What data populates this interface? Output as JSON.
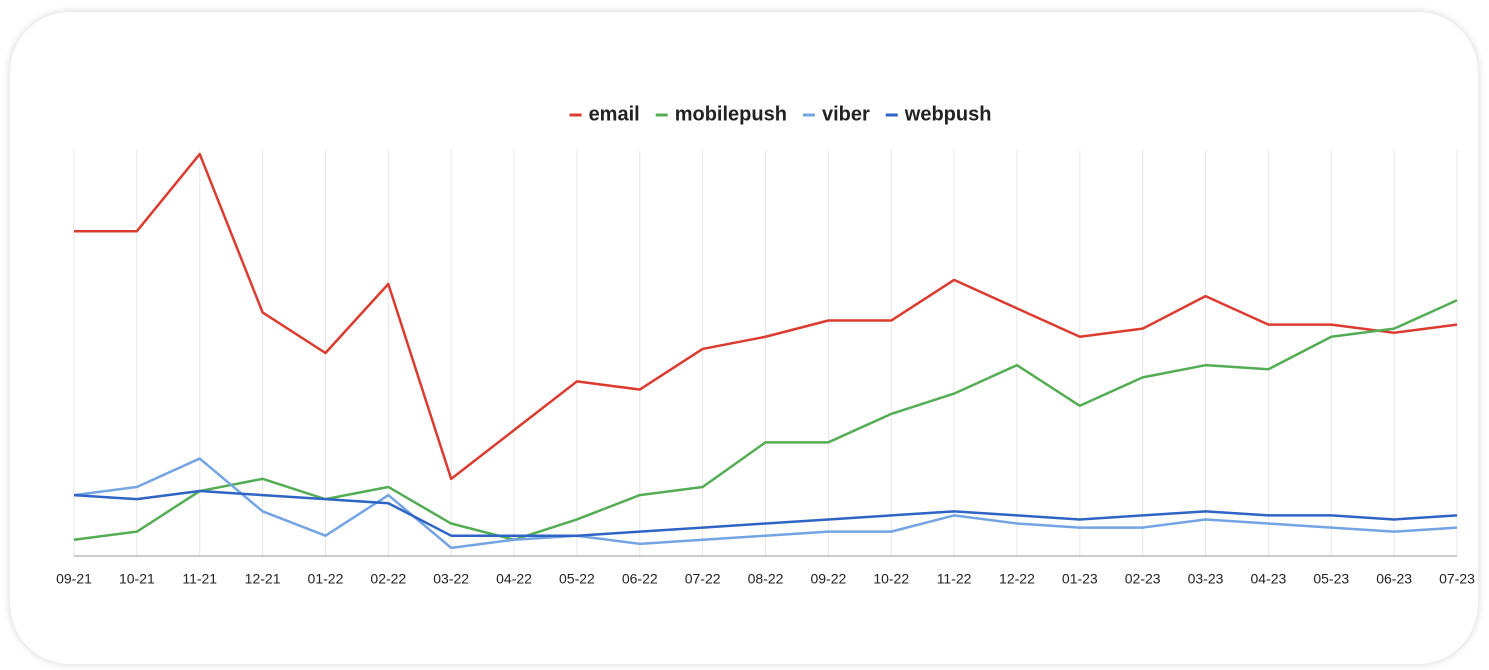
{
  "chart_data": {
    "type": "line",
    "categories": [
      "09-21",
      "10-21",
      "11-21",
      "12-21",
      "01-22",
      "02-22",
      "03-22",
      "04-22",
      "05-22",
      "06-22",
      "07-22",
      "08-22",
      "09-22",
      "10-22",
      "11-22",
      "12-22",
      "01-23",
      "02-23",
      "03-23",
      "04-23",
      "05-23",
      "06-23",
      "07-23"
    ],
    "series": [
      {
        "name": "email",
        "color": "#dc3b2f",
        "values": [
          80,
          80,
          99,
          60,
          50,
          67,
          19,
          31,
          43,
          41,
          51,
          54,
          58,
          58,
          68,
          61,
          54,
          56,
          64,
          57,
          57,
          55,
          57
        ]
      },
      {
        "name": "mobilepush",
        "color": "#54ad54",
        "values": [
          4,
          6,
          16,
          19,
          14,
          17,
          8,
          4,
          9,
          15,
          17,
          28,
          28,
          35,
          40,
          47,
          37,
          44,
          47,
          46,
          54,
          56,
          63
        ]
      },
      {
        "name": "viber",
        "color": "#74a4e4",
        "values": [
          15,
          17,
          24,
          11,
          5,
          15,
          2,
          4,
          5,
          3,
          4,
          5,
          6,
          6,
          10,
          8,
          7,
          7,
          9,
          8,
          7,
          6,
          7
        ]
      },
      {
        "name": "webpush",
        "color": "#2f64c4",
        "values": [
          15,
          14,
          16,
          15,
          14,
          13,
          5,
          5,
          5,
          6,
          7,
          8,
          9,
          10,
          11,
          10,
          9,
          10,
          11,
          10,
          10,
          9,
          10
        ]
      }
    ],
    "ylim": [
      0,
      100
    ],
    "grid": true,
    "legend": "top"
  }
}
